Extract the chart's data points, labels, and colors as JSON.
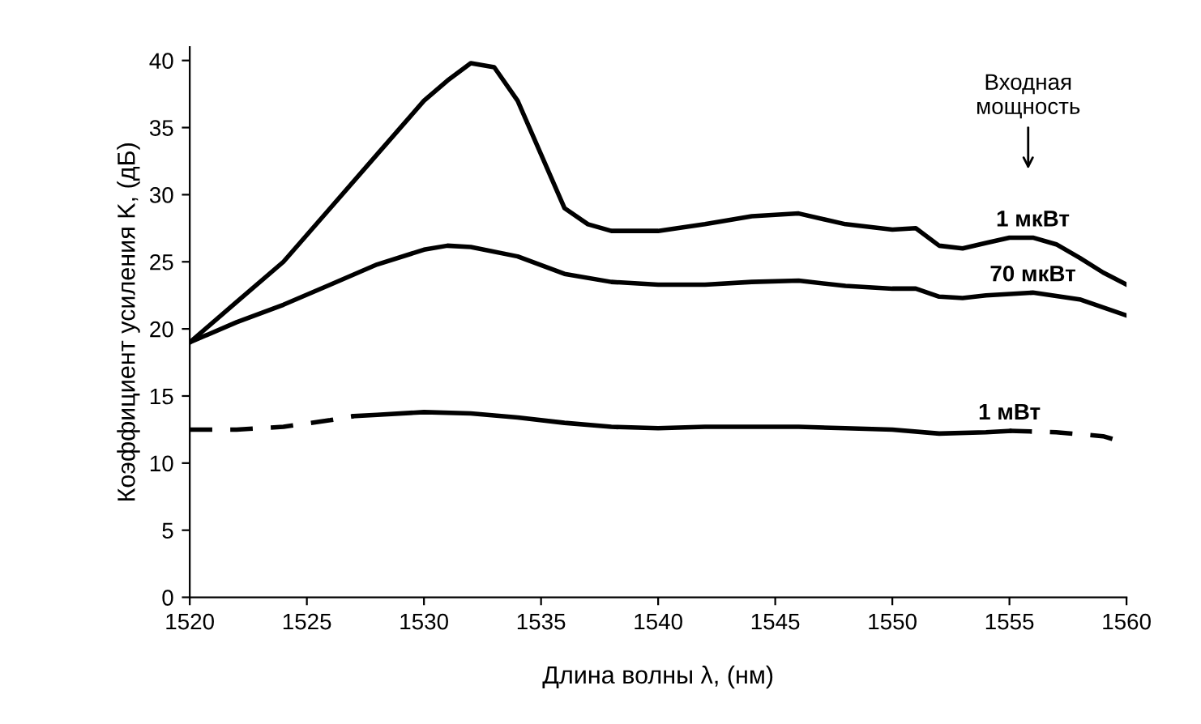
{
  "chart_data": {
    "type": "line",
    "xlabel": "Длина волны λ, (нм)",
    "ylabel": "Коэффициент усиления K, (дБ)",
    "xlim": [
      1520,
      1560
    ],
    "xticks": [
      1520,
      1525,
      1530,
      1535,
      1540,
      1545,
      1550,
      1555,
      1560
    ],
    "ylim": [
      0,
      41
    ],
    "yticks": [
      0,
      5,
      10,
      15,
      20,
      25,
      30,
      35,
      40
    ],
    "grid": false,
    "legend": false,
    "marker": "none",
    "annotations": [
      "Входная\nмощность"
    ],
    "series": [
      {
        "name": "1 мкВт",
        "color": "#000000",
        "line_style": "solid",
        "x": [
          1520,
          1522,
          1524,
          1526,
          1528,
          1530,
          1531,
          1532,
          1533,
          1534,
          1535,
          1536,
          1537,
          1538,
          1540,
          1542,
          1544,
          1546,
          1548,
          1550,
          1551,
          1552,
          1553,
          1554,
          1555,
          1556,
          1557,
          1558,
          1559,
          1560
        ],
        "values": [
          19,
          22,
          25,
          29,
          33,
          37,
          38.5,
          39.8,
          39.5,
          37,
          33,
          29,
          27.8,
          27.3,
          27.3,
          27.8,
          28.4,
          28.6,
          27.8,
          27.4,
          27.5,
          26.2,
          26.0,
          26.4,
          26.8,
          26.8,
          26.3,
          25.3,
          24.2,
          23.3
        ]
      },
      {
        "name": "70 мкВт",
        "color": "#000000",
        "line_style": "solid",
        "x": [
          1520,
          1522,
          1524,
          1526,
          1528,
          1530,
          1531,
          1532,
          1534,
          1536,
          1538,
          1540,
          1542,
          1544,
          1546,
          1548,
          1550,
          1551,
          1552,
          1553,
          1554,
          1556,
          1558,
          1560
        ],
        "values": [
          19,
          20.5,
          21.8,
          23.3,
          24.8,
          25.9,
          26.2,
          26.1,
          25.4,
          24.1,
          23.5,
          23.3,
          23.3,
          23.5,
          23.6,
          23.2,
          23.0,
          23.0,
          22.4,
          22.3,
          22.5,
          22.7,
          22.2,
          21.0
        ]
      },
      {
        "color": "#000000",
        "line_style": "dashed",
        "x": [
          1520,
          1522,
          1524,
          1526,
          1527
        ],
        "values": [
          12.5,
          12.5,
          12.7,
          13.2,
          13.5
        ]
      },
      {
        "name": "1 мВт",
        "color": "#000000",
        "line_style": "solid",
        "x": [
          1527,
          1528,
          1530,
          1532,
          1534,
          1536,
          1538,
          1540,
          1542,
          1544,
          1546,
          1548,
          1550,
          1552,
          1554,
          1555
        ],
        "values": [
          13.5,
          13.6,
          13.8,
          13.7,
          13.4,
          13.0,
          12.7,
          12.6,
          12.7,
          12.7,
          12.7,
          12.6,
          12.5,
          12.2,
          12.3,
          12.4
        ]
      },
      {
        "color": "#000000",
        "line_style": "dashed",
        "x": [
          1555,
          1557,
          1559,
          1560
        ],
        "values": [
          12.4,
          12.3,
          12.0,
          11.5
        ]
      }
    ]
  }
}
